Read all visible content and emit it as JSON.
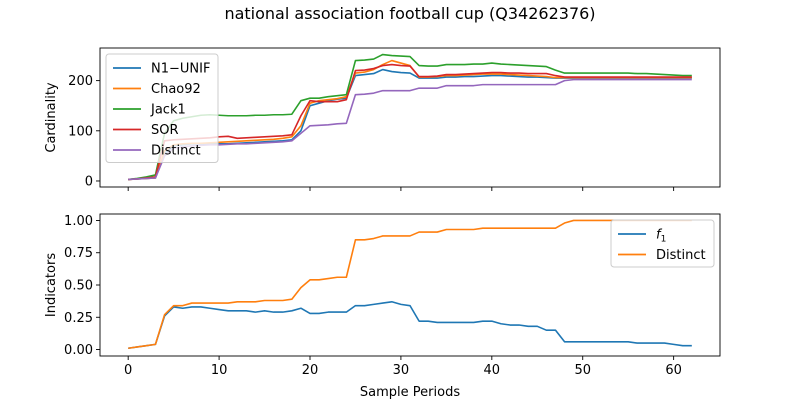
{
  "chart_data": {
    "title": "national association football cup (Q34262376)",
    "xlabel": "Sample Periods",
    "xlim": [
      -3.1,
      65.1
    ],
    "xticks": [
      0,
      10,
      20,
      30,
      40,
      50,
      60
    ],
    "panels": [
      {
        "type": "line",
        "ylabel": "Cardinality",
        "ylim": [
          -12,
          265
        ],
        "yticks": [
          0,
          100,
          200
        ],
        "legend_position": "upper-left",
        "series": [
          {
            "name": "N1−UNIF",
            "color": "#1f77b4",
            "values": [
              3,
              4,
              5,
              6,
              55,
              70,
              72,
              74,
              74,
              74,
              74,
              74,
              75,
              76,
              77,
              78,
              79,
              80,
              82,
              100,
              150,
              155,
              160,
              163,
              165,
              210,
              212,
              214,
              222,
              218,
              216,
              215,
              205,
              205,
              205,
              207,
              207,
              208,
              208,
              209,
              210,
              210,
              209,
              208,
              207,
              207,
              206,
              205,
              205,
              205,
              205,
              205,
              205,
              205,
              205,
              205,
              205,
              205,
              205,
              205,
              205,
              205,
              205
            ]
          },
          {
            "name": "Chao92",
            "color": "#ff7f0e",
            "values": [
              3,
              4,
              5,
              6,
              60,
              72,
              74,
              75,
              75,
              76,
              77,
              78,
              79,
              80,
              81,
              82,
              83,
              85,
              88,
              110,
              155,
              160,
              162,
              164,
              168,
              215,
              217,
              222,
              232,
              240,
              235,
              230,
              207,
              207,
              208,
              210,
              210,
              211,
              212,
              213,
              213,
              213,
              212,
              211,
              210,
              209,
              208,
              206,
              206,
              206,
              206,
              206,
              206,
              206,
              206,
              206,
              206,
              206,
              206,
              206,
              206,
              206,
              206
            ]
          },
          {
            "name": "Jack1",
            "color": "#2ca02c",
            "values": [
              3,
              5,
              8,
              12,
              95,
              120,
              125,
              128,
              131,
              132,
              131,
              130,
              130,
              130,
              131,
              131,
              132,
              132,
              133,
              160,
              165,
              165,
              168,
              170,
              172,
              240,
              241,
              243,
              252,
              250,
              249,
              248,
              230,
              229,
              229,
              232,
              232,
              232,
              233,
              233,
              235,
              233,
              232,
              231,
              230,
              229,
              228,
              221,
              215,
              215,
              215,
              215,
              215,
              215,
              215,
              215,
              214,
              214,
              213,
              212,
              211,
              210,
              210
            ]
          },
          {
            "name": "SOR",
            "color": "#d62728",
            "values": [
              3,
              4,
              6,
              8,
              80,
              82,
              83,
              84,
              85,
              86,
              88,
              89,
              85,
              86,
              87,
              88,
              89,
              90,
              92,
              130,
              160,
              158,
              158,
              158,
              162,
              220,
              221,
              224,
              230,
              232,
              230,
              229,
              208,
              208,
              209,
              212,
              212,
              213,
              214,
              215,
              216,
              216,
              215,
              215,
              214,
              214,
              214,
              210,
              207,
              207,
              207,
              207,
              207,
              207,
              207,
              207,
              207,
              207,
              207,
              207,
              207,
              207,
              207
            ]
          },
          {
            "name": "Distinct",
            "color": "#9467bd",
            "values": [
              3,
              4,
              5,
              6,
              50,
              65,
              68,
              70,
              71,
              72,
              72,
              73,
              74,
              74,
              75,
              76,
              77,
              78,
              80,
              95,
              110,
              111,
              112,
              114,
              115,
              172,
              173,
              175,
              180,
              180,
              180,
              180,
              185,
              185,
              185,
              190,
              190,
              190,
              190,
              192,
              192,
              192,
              192,
              192,
              192,
              192,
              192,
              192,
              200,
              202,
              202,
              202,
              202,
              202,
              202,
              202,
              202,
              202,
              202,
              202,
              202,
              202,
              202
            ]
          }
        ]
      },
      {
        "type": "line",
        "ylabel": "Indicators",
        "ylim": [
          -0.05,
          1.05
        ],
        "yticks": [
          0.0,
          0.25,
          0.5,
          0.75,
          1.0
        ],
        "ytick_labels": [
          "0.00",
          "0.25",
          "0.50",
          "0.75",
          "1.00"
        ],
        "legend_position": "upper-right",
        "series": [
          {
            "name": "f1",
            "label_base": "f",
            "label_sub": "1",
            "color": "#1f77b4",
            "values": [
              0.01,
              0.02,
              0.03,
              0.04,
              0.26,
              0.33,
              0.32,
              0.33,
              0.33,
              0.32,
              0.31,
              0.3,
              0.3,
              0.3,
              0.29,
              0.3,
              0.29,
              0.29,
              0.3,
              0.32,
              0.28,
              0.28,
              0.29,
              0.29,
              0.29,
              0.34,
              0.34,
              0.35,
              0.36,
              0.37,
              0.35,
              0.34,
              0.22,
              0.22,
              0.21,
              0.21,
              0.21,
              0.21,
              0.21,
              0.22,
              0.22,
              0.2,
              0.19,
              0.19,
              0.18,
              0.18,
              0.15,
              0.15,
              0.06,
              0.06,
              0.06,
              0.06,
              0.06,
              0.06,
              0.06,
              0.06,
              0.05,
              0.05,
              0.05,
              0.05,
              0.04,
              0.03,
              0.03
            ]
          },
          {
            "name": "Distinct",
            "color": "#ff7f0e",
            "values": [
              0.01,
              0.02,
              0.03,
              0.04,
              0.27,
              0.34,
              0.34,
              0.36,
              0.36,
              0.36,
              0.36,
              0.36,
              0.37,
              0.37,
              0.37,
              0.38,
              0.38,
              0.38,
              0.39,
              0.48,
              0.54,
              0.54,
              0.55,
              0.56,
              0.56,
              0.85,
              0.85,
              0.86,
              0.88,
              0.88,
              0.88,
              0.88,
              0.91,
              0.91,
              0.91,
              0.93,
              0.93,
              0.93,
              0.93,
              0.94,
              0.94,
              0.94,
              0.94,
              0.94,
              0.94,
              0.94,
              0.94,
              0.94,
              0.98,
              1.0,
              1.0,
              1.0,
              1.0,
              1.0,
              1.0,
              1.0,
              1.0,
              1.0,
              1.0,
              1.0,
              1.0,
              1.0,
              1.0
            ]
          }
        ]
      }
    ]
  }
}
